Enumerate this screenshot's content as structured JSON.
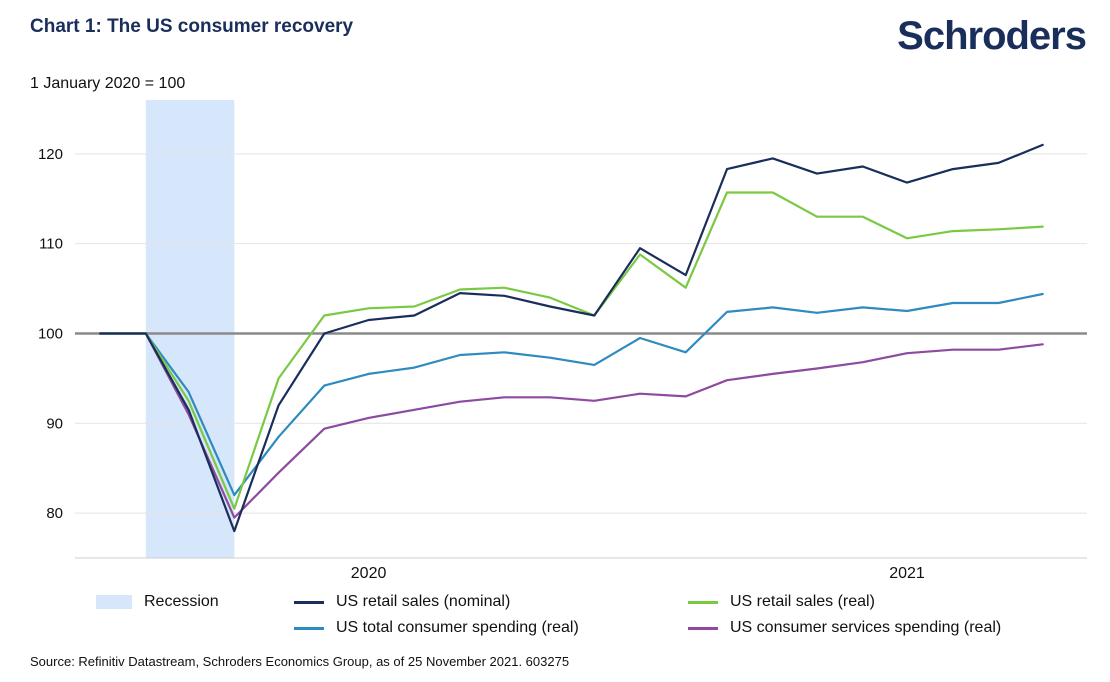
{
  "header": {
    "title": "Chart 1: The US consumer recovery",
    "brand": "Schroders",
    "unit_label": "1 January 2020 = 100"
  },
  "source": "Source: Refinitiv Datastream, Schroders Economics Group, as of 25 November 2021. 603275",
  "colors": {
    "nominal_sales": "#1a2e5c",
    "real_sales": "#7ac943",
    "total_spending": "#2e8bc0",
    "services_spending": "#8e4a9e",
    "recession": "#d6e6fb",
    "baseline": "#8a8a8a",
    "grid": "#e4e4e4"
  },
  "chart_data": {
    "type": "line",
    "title": "Chart 1: The US consumer recovery",
    "ylabel": "1 January 2020 = 100",
    "ylim": [
      75,
      126
    ],
    "yticks": [
      80,
      90,
      100,
      110,
      120
    ],
    "grid": true,
    "baseline": 100,
    "x": [
      "2020-01",
      "2020-02",
      "2020-03",
      "2020-04",
      "2020-05",
      "2020-06",
      "2020-07",
      "2020-08",
      "2020-09",
      "2020-10",
      "2020-11",
      "2020-12",
      "2021-01",
      "2021-02",
      "2021-03",
      "2021-04",
      "2021-05",
      "2021-06",
      "2021-07",
      "2021-08",
      "2021-09",
      "2021-10"
    ],
    "xlim": [
      "2019-12-15",
      "2021-10-31"
    ],
    "xticks": [
      {
        "label": "2020",
        "at": "2020-07-01"
      },
      {
        "label": "2021",
        "at": "2021-07-01"
      }
    ],
    "recession": {
      "label": "Recession",
      "start": "2020-02-01",
      "end": "2020-04-01"
    },
    "series": [
      {
        "name": "US retail sales (nominal)",
        "color_key": "nominal_sales",
        "values": [
          100,
          100,
          91.5,
          78,
          92,
          100,
          101.5,
          102,
          104.5,
          104.2,
          103,
          102,
          109.5,
          106.5,
          118.3,
          119.5,
          117.8,
          118.6,
          116.8,
          118.3,
          119,
          121
        ]
      },
      {
        "name": "US retail sales (real)",
        "color_key": "real_sales",
        "values": [
          100,
          100,
          92.5,
          80.5,
          95,
          102,
          102.8,
          103,
          104.9,
          105.1,
          104,
          102,
          108.8,
          105.1,
          115.7,
          115.7,
          113,
          113,
          110.6,
          111.4,
          111.6,
          111.9
        ]
      },
      {
        "name": "US total consumer spending (real)",
        "color_key": "total_spending",
        "values": [
          100,
          100,
          93.5,
          82,
          88.5,
          94.2,
          95.5,
          96.2,
          97.6,
          97.9,
          97.3,
          96.5,
          99.5,
          97.9,
          102.4,
          102.9,
          102.3,
          102.9,
          102.5,
          103.4,
          103.4,
          104.4
        ]
      },
      {
        "name": "US consumer services spending (real)",
        "color_key": "services_spending",
        "values": [
          100,
          100,
          91,
          79.5,
          84.5,
          89.4,
          90.6,
          91.5,
          92.4,
          92.9,
          92.9,
          92.5,
          93.3,
          93,
          94.8,
          95.5,
          96.1,
          96.8,
          97.8,
          98.2,
          98.2,
          98.8
        ]
      }
    ]
  }
}
